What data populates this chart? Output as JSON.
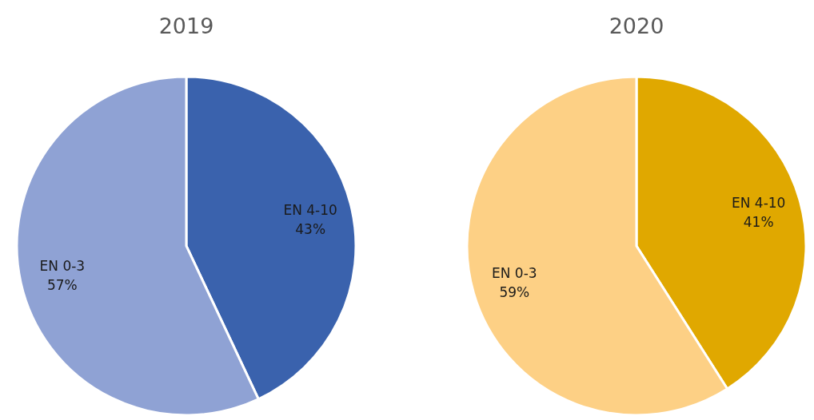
{
  "chart_data": [
    {
      "type": "pie",
      "title": "2019",
      "categories": [
        "EN 4-10",
        "EN 0-3"
      ],
      "values": [
        43,
        57
      ],
      "colors": [
        "#3a62ad",
        "#8fa2d4"
      ],
      "value_labels": [
        "43%",
        "57%"
      ]
    },
    {
      "type": "pie",
      "title": "2020",
      "categories": [
        "EN 4-10",
        "EN 0-3"
      ],
      "values": [
        41,
        59
      ],
      "colors": [
        "#e0a800",
        "#fdd085"
      ],
      "value_labels": [
        "41%",
        "59%"
      ]
    }
  ]
}
